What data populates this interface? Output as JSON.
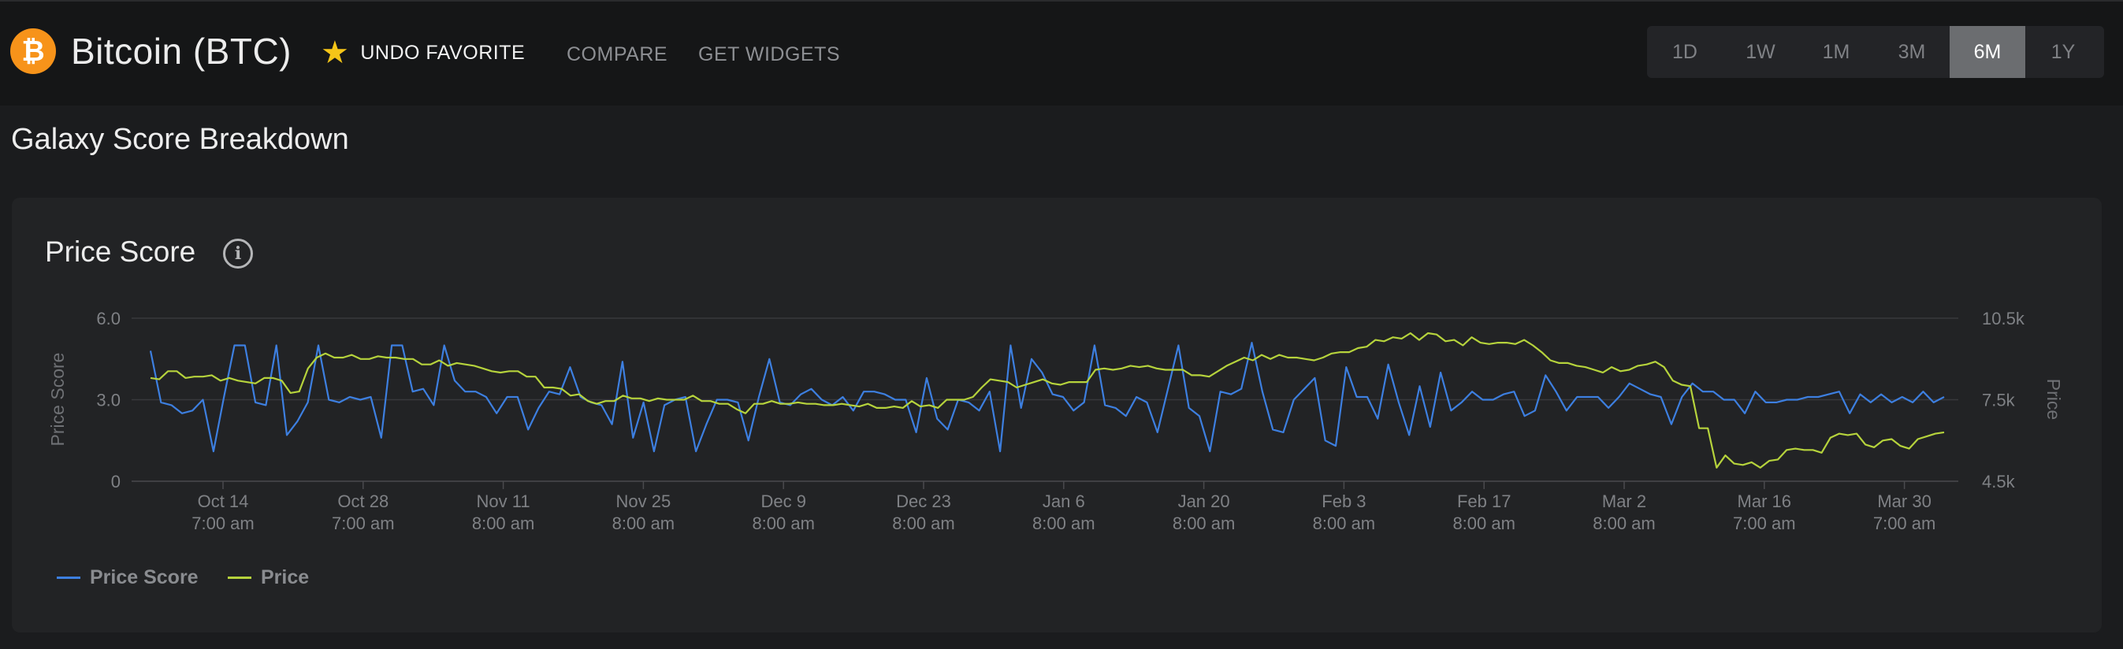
{
  "header": {
    "coin_logo_glyph": "₿",
    "coin_title": "Bitcoin (BTC)",
    "favorite_label": "UNDO FAVORITE",
    "compare_label": "COMPARE",
    "widgets_label": "GET WIDGETS",
    "ranges": [
      "1D",
      "1W",
      "1M",
      "3M",
      "6M",
      "1Y"
    ],
    "active_range": "6M"
  },
  "section": {
    "title": "Galaxy Score Breakdown"
  },
  "card": {
    "title": "Price Score",
    "info_glyph": "i"
  },
  "legend": {
    "price_score": "Price Score",
    "price": "Price"
  },
  "colors": {
    "price_score": "#3d7fe0",
    "price": "#b6d33c",
    "star": "#f5c518",
    "brand": "#f7931a"
  },
  "chart_data": {
    "type": "line",
    "ylabel_left": "Price Score",
    "ylabel_right": "Price",
    "ylim_left": [
      0,
      6
    ],
    "ylim_right": [
      4500,
      10500
    ],
    "left_ticks": [
      "6.0",
      "3.0",
      "0"
    ],
    "right_ticks": [
      "10.5k",
      "7.5k",
      "4.5k"
    ],
    "grid": true,
    "legend_position": "bottom-left",
    "x_ticks": [
      {
        "date": "Oct 14",
        "time": "7:00 am"
      },
      {
        "date": "Oct 28",
        "time": "7:00 am"
      },
      {
        "date": "Nov 11",
        "time": "8:00 am"
      },
      {
        "date": "Nov 25",
        "time": "8:00 am"
      },
      {
        "date": "Dec 9",
        "time": "8:00 am"
      },
      {
        "date": "Dec 23",
        "time": "8:00 am"
      },
      {
        "date": "Jan 6",
        "time": "8:00 am"
      },
      {
        "date": "Jan 20",
        "time": "8:00 am"
      },
      {
        "date": "Feb 3",
        "time": "8:00 am"
      },
      {
        "date": "Feb 17",
        "time": "8:00 am"
      },
      {
        "date": "Mar 2",
        "time": "8:00 am"
      },
      {
        "date": "Mar 16",
        "time": "7:00 am"
      },
      {
        "date": "Mar 30",
        "time": "7:00 am"
      }
    ],
    "series": [
      {
        "name": "Price Score",
        "axis": "left",
        "values": [
          4.8,
          2.9,
          2.8,
          2.5,
          2.6,
          3.0,
          1.1,
          3.1,
          5.0,
          5.0,
          2.9,
          2.8,
          5.0,
          1.7,
          2.2,
          2.9,
          5.0,
          3.0,
          2.9,
          3.1,
          3.0,
          3.1,
          1.6,
          5.0,
          5.0,
          3.3,
          3.4,
          2.8,
          5.0,
          3.7,
          3.3,
          3.3,
          3.1,
          2.5,
          3.1,
          3.1,
          1.9,
          2.7,
          3.3,
          3.2,
          4.2,
          3.1,
          2.9,
          2.8,
          2.1,
          4.4,
          1.6,
          2.9,
          1.1,
          2.8,
          3.0,
          3.1,
          1.1,
          2.1,
          3.0,
          3.0,
          2.9,
          1.5,
          3.1,
          4.5,
          2.9,
          2.8,
          3.2,
          3.4,
          3.0,
          2.8,
          3.1,
          2.6,
          3.3,
          3.3,
          3.2,
          3.0,
          3.0,
          1.8,
          3.8,
          2.3,
          1.9,
          3.0,
          2.9,
          2.6,
          3.3,
          1.1,
          5.0,
          2.7,
          4.5,
          4.0,
          3.2,
          3.1,
          2.6,
          2.9,
          5.0,
          2.8,
          2.7,
          2.4,
          3.1,
          2.9,
          1.8,
          3.4,
          5.0,
          2.7,
          2.4,
          1.1,
          3.3,
          3.2,
          3.4,
          5.1,
          3.3,
          1.9,
          1.8,
          3.0,
          3.4,
          3.8,
          1.5,
          1.3,
          4.2,
          3.1,
          3.1,
          2.3,
          4.3,
          2.9,
          1.7,
          3.5,
          2.0,
          4.0,
          2.6,
          2.9,
          3.3,
          3.0,
          3.0,
          3.2,
          3.3,
          2.4,
          2.6,
          3.9,
          3.3,
          2.6,
          3.1,
          3.1,
          3.1,
          2.7,
          3.1,
          3.6,
          3.4,
          3.2,
          3.1,
          2.1,
          3.1,
          3.6,
          3.3,
          3.3,
          3.0,
          3.0,
          2.5,
          3.3,
          2.9,
          2.9,
          3.0,
          3.0,
          3.1,
          3.1,
          3.2,
          3.3,
          2.5,
          3.2,
          2.9,
          3.2,
          2.9,
          3.1,
          2.9,
          3.3,
          2.9,
          3.1
        ]
      },
      {
        "name": "Price",
        "axis": "right",
        "values": [
          8300,
          8250,
          8550,
          8550,
          8300,
          8350,
          8350,
          8400,
          8200,
          8300,
          8200,
          8150,
          8100,
          8300,
          8300,
          8200,
          7750,
          7800,
          8650,
          9050,
          9200,
          9050,
          9050,
          9150,
          9000,
          9000,
          9100,
          9050,
          9050,
          9000,
          9000,
          8800,
          8800,
          8950,
          8750,
          8850,
          8800,
          8750,
          8650,
          8550,
          8500,
          8550,
          8550,
          8350,
          8350,
          7950,
          7950,
          7900,
          7650,
          7700,
          7450,
          7350,
          7450,
          7450,
          7650,
          7550,
          7550,
          7450,
          7550,
          7500,
          7500,
          7500,
          7650,
          7450,
          7450,
          7350,
          7350,
          7150,
          7000,
          7350,
          7350,
          7450,
          7350,
          7350,
          7400,
          7350,
          7350,
          7300,
          7300,
          7350,
          7300,
          7250,
          7350,
          7200,
          7200,
          7250,
          7200,
          7450,
          7250,
          7300,
          7200,
          7500,
          7500,
          7500,
          7600,
          7950,
          8250,
          8200,
          8150,
          7950,
          8050,
          8150,
          8250,
          8100,
          8050,
          8150,
          8150,
          8150,
          8600,
          8650,
          8600,
          8650,
          8750,
          8700,
          8750,
          8650,
          8600,
          8600,
          8600,
          8400,
          8400,
          8350,
          8550,
          8750,
          8900,
          9050,
          8950,
          9150,
          9000,
          9150,
          9050,
          9050,
          9000,
          8950,
          9050,
          9200,
          9250,
          9250,
          9400,
          9450,
          9700,
          9650,
          9800,
          9750,
          9950,
          9700,
          9950,
          9900,
          9650,
          9700,
          9500,
          9800,
          9600,
          9550,
          9600,
          9600,
          9550,
          9700,
          9500,
          9250,
          8950,
          8850,
          8850,
          8750,
          8700,
          8600,
          8500,
          8700,
          8550,
          8600,
          8750,
          8800,
          8900,
          8700,
          8200,
          8050,
          8000,
          6450,
          6450,
          5000,
          5450,
          5150,
          5100,
          5200,
          5000,
          5250,
          5300,
          5650,
          5700,
          5650,
          5650,
          5550,
          6100,
          6250,
          6200,
          6250,
          5850,
          5750,
          6000,
          6050,
          5800,
          5700,
          6050,
          6150,
          6250,
          6300
        ]
      }
    ]
  }
}
